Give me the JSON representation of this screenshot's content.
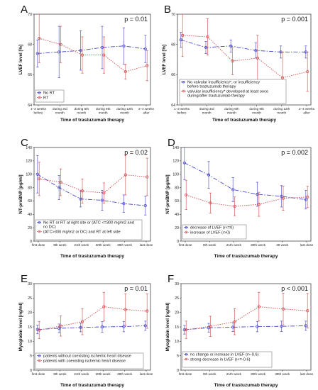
{
  "chart_data": [
    {
      "letter": "A",
      "type": "line",
      "p_value": "p = 0.01",
      "xlabel": "Time of trastuzumab therapy",
      "ylabel": "LVEF level [%]",
      "ylim": [
        64,
        70
      ],
      "yticks": [
        64,
        66,
        68,
        70
      ],
      "categories": [
        "1–3 weeks before",
        "during 3rd month",
        "during 6th month",
        "during 9th month",
        "during 12th month",
        "2–4 weeks after"
      ],
      "series": [
        {
          "name": "No RT",
          "color": "#4a4ac8",
          "dash": "6,2,1.5,2",
          "values": [
            67.4,
            67.5,
            67.6,
            67.8,
            67.9,
            67.7
          ],
          "err": [
            0.9,
            1.7,
            1.3,
            1.4,
            1.2,
            0.9
          ]
        },
        {
          "name": "RT",
          "color": "#d05050",
          "dash": "1.5,1.5",
          "values": [
            68.4,
            68.0,
            67.3,
            67.3,
            66.2,
            66.6
          ],
          "err": [
            1.6,
            1.2,
            1.2,
            1.2,
            0.5,
            1.0
          ]
        }
      ],
      "legend": {
        "place": "bottom-left"
      }
    },
    {
      "letter": "B",
      "type": "line",
      "p_value": "p = 0.001",
      "xlabel": "Time of trastuzumab therapy",
      "ylabel": "LVEF level [%]",
      "ylim": [
        64,
        70
      ],
      "yticks": [
        64,
        66,
        68,
        70
      ],
      "categories": [
        "1–3 weeks before",
        "during 3rd month",
        "during 6th month",
        "during 9th month",
        "during 12th month",
        "2–4 weeks after"
      ],
      "series": [
        {
          "name": "No valvular insufficiency*, or insufficiency before trastuzumab therapy",
          "color": "#4a4ac8",
          "dash": "6,2,1.5,2",
          "values": [
            68.3,
            67.8,
            67.9,
            67.6,
            67.5,
            67.5
          ],
          "err": [
            0.5,
            0.4,
            0.4,
            0.5,
            0.4,
            0.4
          ]
        },
        {
          "name": "valvular insufficiency* developed at least once during/after trastuzumab therapy",
          "color": "#d05050",
          "dash": "1.5,1.5",
          "values": [
            68.6,
            68.5,
            66.9,
            67.1,
            65.8,
            66.2
          ],
          "err": [
            1.4,
            1.2,
            0.9,
            1.5,
            1.7,
            1.3
          ]
        }
      ],
      "legend": {
        "place": "bottom-left"
      }
    },
    {
      "letter": "C",
      "type": "line",
      "p_value": "p = 0.02",
      "xlabel": "Time of trastuzumab therapy",
      "ylabel": "NT-proBNP [pg/ml]",
      "ylim": [
        0,
        140
      ],
      "yticks": [
        0,
        20,
        40,
        60,
        80,
        100,
        120,
        140
      ],
      "categories": [
        "first dose",
        "9th week",
        "21th week",
        "30th week",
        "39th week",
        "last dose"
      ],
      "series": [
        {
          "name": "No RT or RT at right site or (ATC <=300  mg/m2 and no DC)",
          "color": "#4a4ac8",
          "dash": "6,2,1.5,2",
          "values": [
            100,
            80,
            63,
            61,
            56,
            53
          ],
          "err": [
            28,
            18,
            12,
            15,
            13,
            14
          ]
        },
        {
          "name": "(ATC>300 mg/m2 or DC) and RT at left side",
          "color": "#d05050",
          "dash": "1.5,1.5",
          "values": [
            93,
            88,
            75,
            72,
            99,
            96
          ],
          "err": [
            25,
            20,
            18,
            15,
            30,
            28
          ]
        }
      ],
      "legend": {
        "place": "bottom-left"
      }
    },
    {
      "letter": "D",
      "type": "line",
      "p_value": "p = 0.002",
      "xlabel": "Time of trastuzumab therapy",
      "ylabel": "NT-proBNP [pg/ml]",
      "ylim": [
        0,
        140
      ],
      "yticks": [
        0,
        20,
        40,
        60,
        80,
        100,
        120,
        140
      ],
      "categories": [
        "first dose",
        "9th week",
        "21th week",
        "30th week",
        "39 week",
        "last dose"
      ],
      "series": [
        {
          "name": "decrease of LVEF (r<=0)",
          "color": "#4a4ac8",
          "dash": "6,2,1.5,2",
          "values": [
            117,
            99,
            77,
            70,
            67,
            62
          ],
          "err": [
            25,
            20,
            18,
            18,
            16,
            14
          ]
        },
        {
          "name": "increase of LVEF (r>0)",
          "color": "#d05050",
          "dash": "1.5,1.5",
          "values": [
            69,
            57,
            52,
            55,
            64,
            66
          ],
          "err": [
            22,
            15,
            14,
            18,
            18,
            16
          ]
        }
      ],
      "legend": {
        "place": "bottom-left"
      }
    },
    {
      "letter": "E",
      "type": "line",
      "p_value": "p = 0.01",
      "xlabel": "Time of trastuzumab therapy",
      "ylabel": "Myoglobin level [ng/ml]",
      "ylim": [
        0,
        30
      ],
      "yticks": [
        0,
        5,
        10,
        15,
        20,
        25,
        30
      ],
      "categories": [
        "first dose",
        "9th week",
        "21th week",
        "30th week",
        "39th week",
        "last dose"
      ],
      "series": [
        {
          "name": "patients without coexisting ischemic heart disease",
          "color": "#4a4ac8",
          "dash": "6,2,1.5,2",
          "values": [
            14.1,
            14.5,
            14.8,
            15.0,
            15.1,
            15.4
          ],
          "err": [
            1.5,
            1.5,
            1.5,
            1.8,
            1.8,
            1.6
          ]
        },
        {
          "name": "patients with coexisting ischemic heart disease",
          "color": "#d05050",
          "dash": "1.5,1.5",
          "values": [
            13.9,
            15.3,
            16.8,
            22.0,
            21.0,
            20.5
          ],
          "err": [
            3.0,
            3.5,
            4.5,
            5.0,
            5.5,
            6.0
          ]
        }
      ],
      "legend": {
        "place": "bottom-left"
      }
    },
    {
      "letter": "F",
      "type": "line",
      "p_value": "p < 0.001",
      "xlabel": "Time of trastuzumab therapy",
      "ylabel": "Myoglobin level [ng/ml]",
      "ylim": [
        0,
        30
      ],
      "yticks": [
        0,
        5,
        10,
        15,
        20,
        25,
        30
      ],
      "categories": [
        "first dose",
        "9th week",
        "21th week",
        "30th week",
        "39th week",
        "last dose"
      ],
      "series": [
        {
          "name": "no change or increase in LVEF (r>-0.6)",
          "color": "#4a4ac8",
          "dash": "6,2,1.5,2",
          "values": [
            14.0,
            14.7,
            14.9,
            15.1,
            15.2,
            15.4
          ],
          "err": [
            1.5,
            1.5,
            1.5,
            1.8,
            1.8,
            1.6
          ]
        },
        {
          "name": "strong decrease in LVEF (r<=-0.6)",
          "color": "#d05050",
          "dash": "1.5,1.5",
          "values": [
            14.0,
            15.2,
            16.8,
            22.0,
            21.2,
            20.6
          ],
          "err": [
            3.0,
            3.5,
            4.5,
            5.0,
            5.5,
            6.0
          ]
        }
      ],
      "legend": {
        "place": "bottom-left"
      }
    }
  ]
}
